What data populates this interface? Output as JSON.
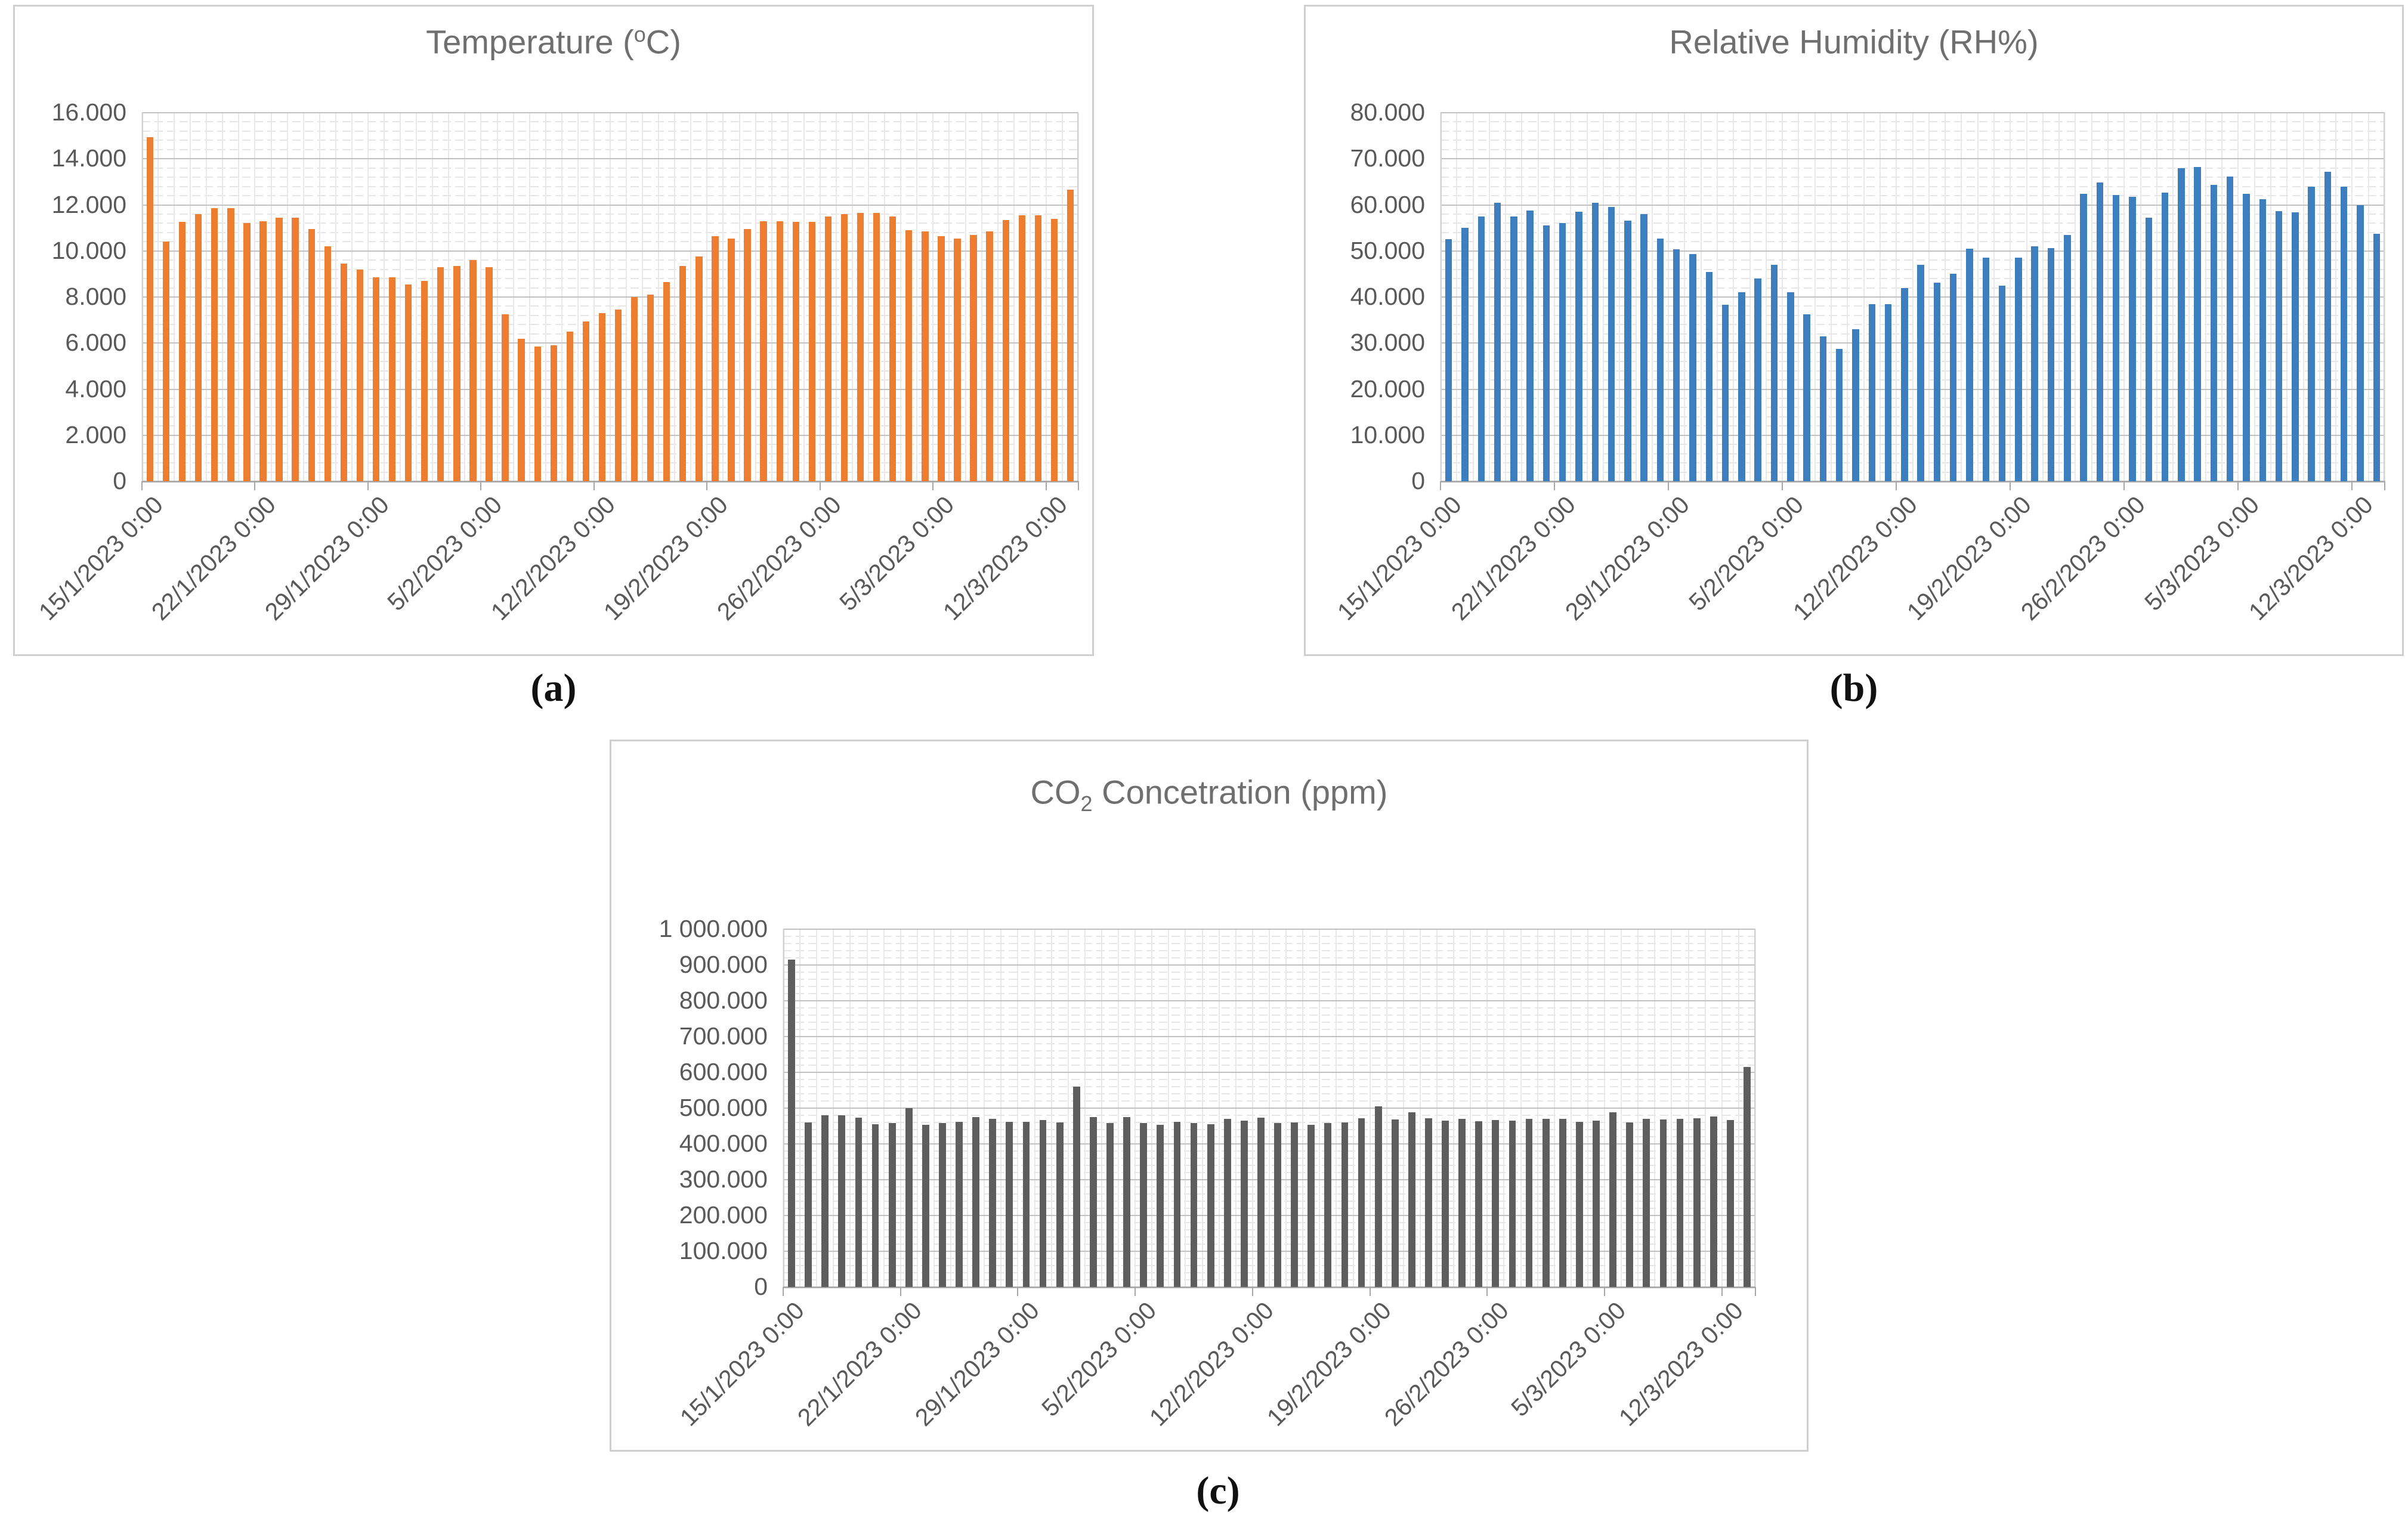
{
  "figure": {
    "captions": {
      "a": "(a)",
      "b": "(b)",
      "c": "(c)"
    }
  },
  "chart_data": [
    {
      "id": "temperature",
      "type": "bar",
      "title": "Temperature (oC)",
      "title_prefix": "Temperature (",
      "title_sup": "o",
      "title_suffix": "C)",
      "bar_color": "#ED7D31",
      "ylim": [
        0,
        16
      ],
      "y_major_step": 2,
      "y_minor_divisions": 5,
      "grid": true,
      "legend": "none",
      "y_tick_labels": [
        "0",
        "2.000",
        "4.000",
        "6.000",
        "8.000",
        "10.000",
        "12.000",
        "14.000",
        "16.000"
      ],
      "x_tick_interval": 7,
      "x_tick_labels": [
        "15/1/2023 0:00",
        "22/1/2023 0:00",
        "29/1/2023 0:00",
        "5/2/2023 0:00",
        "12/2/2023 0:00",
        "19/2/2023 0:00",
        "26/2/2023 0:00",
        "5/3/2023 0:00",
        "12/3/2023 0:00"
      ],
      "values": [
        14.95,
        10.4,
        11.25,
        11.6,
        11.85,
        11.85,
        11.2,
        11.3,
        11.45,
        11.45,
        10.95,
        10.2,
        9.45,
        9.2,
        8.85,
        8.85,
        8.55,
        8.7,
        9.3,
        9.35,
        9.6,
        9.3,
        7.25,
        6.2,
        5.85,
        5.9,
        6.5,
        6.95,
        7.3,
        7.45,
        8.0,
        8.1,
        8.65,
        9.35,
        9.75,
        10.65,
        10.55,
        10.95,
        11.3,
        11.3,
        11.25,
        11.25,
        11.5,
        11.6,
        11.65,
        11.65,
        11.5,
        10.9,
        10.85,
        10.65,
        10.55,
        10.7,
        10.85,
        11.35,
        11.55,
        11.55,
        11.4,
        12.65
      ]
    },
    {
      "id": "humidity",
      "type": "bar",
      "title": "Relative Humidity (RH%)",
      "title_prefix": "Relative Humidity (RH%)",
      "bar_color": "#3D7EBE",
      "ylim": [
        0,
        80
      ],
      "y_major_step": 10,
      "y_minor_divisions": 5,
      "grid": true,
      "legend": "none",
      "y_tick_labels": [
        "0",
        "10.000",
        "20.000",
        "30.000",
        "40.000",
        "50.000",
        "60.000",
        "70.000",
        "80.000"
      ],
      "x_tick_interval": 7,
      "x_tick_labels": [
        "15/1/2023 0:00",
        "22/1/2023 0:00",
        "29/1/2023 0:00",
        "5/2/2023 0:00",
        "12/2/2023 0:00",
        "19/2/2023 0:00",
        "26/2/2023 0:00",
        "5/3/2023 0:00",
        "12/3/2023 0:00"
      ],
      "values": [
        52.5,
        55.0,
        57.5,
        60.5,
        57.5,
        58.8,
        55.5,
        56.0,
        58.5,
        60.5,
        59.5,
        56.6,
        58.0,
        52.7,
        50.3,
        49.3,
        45.5,
        38.3,
        41.0,
        44.0,
        47.0,
        41.0,
        36.3,
        31.5,
        28.7,
        33.0,
        38.5,
        38.5,
        42.0,
        47.0,
        43.1,
        45.0,
        50.5,
        48.5,
        42.5,
        48.6,
        51.0,
        50.6,
        53.5,
        62.4,
        64.9,
        62.1,
        61.8,
        57.2,
        62.6,
        67.9,
        68.2,
        64.4,
        66.1,
        62.4,
        61.2,
        58.6,
        58.4,
        64.0,
        67.2,
        63.9,
        60.0,
        53.7
      ]
    },
    {
      "id": "co2",
      "type": "bar",
      "title": "CO2 Concetration (ppm)",
      "title_prefix": "CO",
      "title_sub": "2",
      "title_suffix": " Concetration (ppm)",
      "bar_color": "#5E5E5E",
      "ylim": [
        0,
        1000
      ],
      "y_major_step": 100,
      "y_minor_divisions": 5,
      "grid": true,
      "legend": "none",
      "y_tick_labels": [
        "0",
        "100.000",
        "200.000",
        "300.000",
        "400.000",
        "500.000",
        "600.000",
        "700.000",
        "800.000",
        "900.000",
        "1 000.000"
      ],
      "x_tick_interval": 7,
      "x_tick_labels": [
        "15/1/2023 0:00",
        "22/1/2023 0:00",
        "29/1/2023 0:00",
        "5/2/2023 0:00",
        "12/2/2023 0:00",
        "19/2/2023 0:00",
        "26/2/2023 0:00",
        "5/3/2023 0:00",
        "12/3/2023 0:00"
      ],
      "values": [
        915,
        460,
        480,
        480,
        473,
        455,
        458,
        500,
        453,
        458,
        462,
        475,
        470,
        462,
        462,
        466,
        460,
        560,
        475,
        458,
        475,
        458,
        453,
        462,
        459,
        455,
        470,
        465,
        474,
        458,
        460,
        453,
        458,
        460,
        472,
        505,
        468,
        488,
        472,
        465,
        470,
        463,
        466,
        465,
        470,
        470,
        470,
        462,
        465,
        488,
        460,
        470,
        468,
        470,
        472,
        477,
        467,
        615
      ]
    }
  ]
}
